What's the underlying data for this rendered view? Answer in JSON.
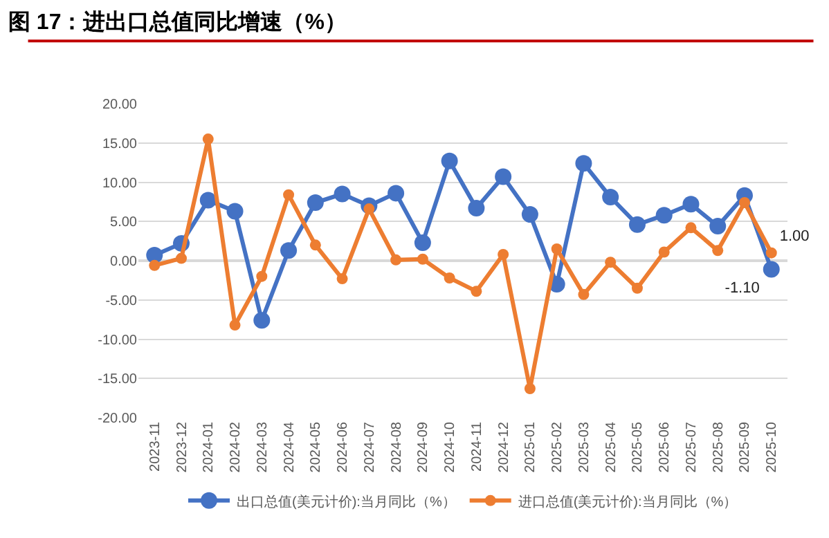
{
  "chart_data": {
    "type": "line",
    "title": "图 17：进出口总值同比增速（%）",
    "categories": [
      "2023-11",
      "2023-12",
      "2024-01",
      "2024-02",
      "2024-03",
      "2024-04",
      "2024-05",
      "2024-06",
      "2024-07",
      "2024-08",
      "2024-09",
      "2024-10",
      "2024-11",
      "2024-12",
      "2025-01",
      "2025-02",
      "2025-03",
      "2025-04",
      "2025-05",
      "2025-06",
      "2025-07",
      "2025-08",
      "2025-09",
      "2025-10"
    ],
    "series": [
      {
        "name": "出口总值(美元计价):当月同比（%）",
        "color": "#4472c4",
        "values": [
          0.7,
          2.2,
          7.7,
          6.3,
          -7.6,
          1.3,
          7.4,
          8.5,
          7.0,
          8.6,
          2.3,
          12.7,
          6.7,
          10.7,
          5.9,
          -3.0,
          12.4,
          8.1,
          4.6,
          5.8,
          7.2,
          4.4,
          8.3,
          -1.1
        ],
        "value_labels": [
          null,
          null,
          null,
          null,
          null,
          null,
          null,
          null,
          null,
          null,
          null,
          null,
          null,
          null,
          null,
          null,
          null,
          null,
          null,
          null,
          null,
          null,
          null,
          "-1.10"
        ]
      },
      {
        "name": "进口总值(美元计价):当月同比（%）",
        "color": "#ed7d31",
        "values": [
          -0.6,
          0.3,
          15.5,
          -8.2,
          -2.0,
          8.4,
          2.0,
          -2.3,
          6.6,
          0.1,
          0.2,
          -2.2,
          -3.9,
          0.8,
          -16.3,
          1.5,
          -4.3,
          -0.2,
          -3.5,
          1.1,
          4.2,
          1.3,
          7.4,
          1.0
        ],
        "value_labels": [
          null,
          null,
          null,
          null,
          null,
          null,
          null,
          null,
          null,
          null,
          null,
          null,
          null,
          null,
          null,
          null,
          null,
          null,
          null,
          null,
          null,
          null,
          null,
          "1.00"
        ]
      }
    ],
    "ylim": [
      -20,
      20
    ],
    "yticks": [
      {
        "value": -20,
        "label": "-20.00"
      },
      {
        "value": -15,
        "label": "-15.00"
      },
      {
        "value": -10,
        "label": "-10.00"
      },
      {
        "value": -5,
        "label": "-5.00"
      },
      {
        "value": 0,
        "label": "0.00"
      },
      {
        "value": 5,
        "label": "5.00"
      },
      {
        "value": 10,
        "label": "10.00"
      },
      {
        "value": 15,
        "label": "15.00"
      },
      {
        "value": 20,
        "label": "20.00"
      }
    ],
    "grid": "y",
    "legend": "bottom",
    "marker": "circle",
    "line_style": "solid"
  }
}
